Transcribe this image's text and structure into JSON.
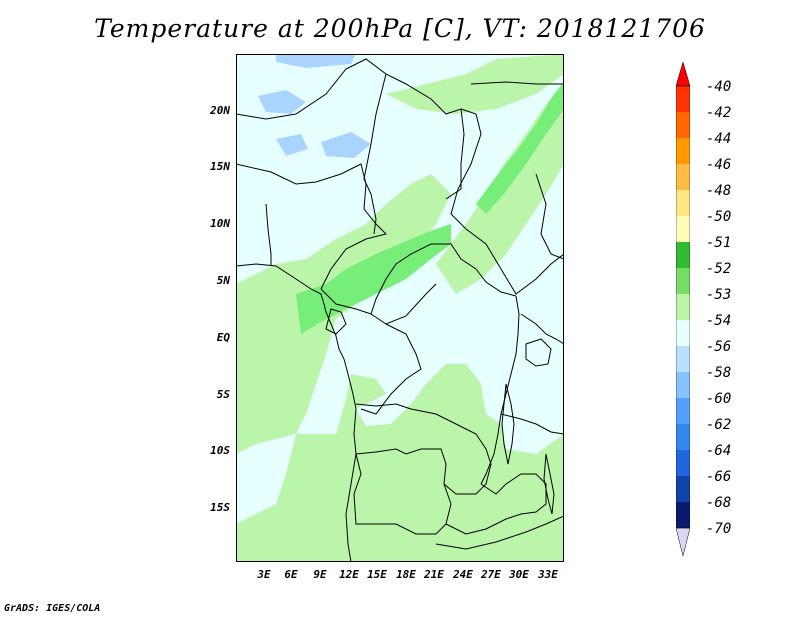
{
  "title": "Temperature at 200hPa [C], VT: 2018121706",
  "credit": "GrADS: IGES/COLA",
  "lat_labels": [
    "20N",
    "15N",
    "10N",
    "5N",
    "EQ",
    "5S",
    "10S",
    "15S"
  ],
  "lon_labels": [
    "3E",
    "6E",
    "9E",
    "12E",
    "15E",
    "18E",
    "21E",
    "24E",
    "27E",
    "30E",
    "33E"
  ],
  "colorbar": {
    "labels": [
      "-40",
      "-42",
      "-44",
      "-46",
      "-48",
      "-50",
      "-51",
      "-52",
      "-53",
      "-54",
      "-56",
      "-58",
      "-60",
      "-62",
      "-64",
      "-66",
      "-68",
      "-70"
    ],
    "colors": [
      "#ff0000",
      "#ff3300",
      "#ff6600",
      "#ff9900",
      "#ffbb44",
      "#ffe680",
      "#fffbbb",
      "#33bb33",
      "#77dd66",
      "#bbf5aa",
      "#e6ffff",
      "#bbe0ff",
      "#88c2ff",
      "#55a0ff",
      "#3388ee",
      "#2266dd",
      "#1144aa",
      "#0a1a6e",
      "#d8d8f5"
    ]
  },
  "map_colors": {
    "land_base": "#e6ffff",
    "band_53": "#bbf5aa",
    "band_52": "#77ee77",
    "band_56": "#a8d4ff",
    "border": "#000000"
  }
}
